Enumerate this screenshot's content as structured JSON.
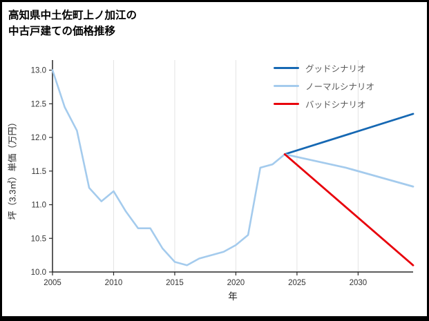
{
  "page": {
    "title_lines": [
      "高知県中土佐町上ノ加江の",
      "中古戸建ての価格推移"
    ]
  },
  "chart_data": {
    "type": "line",
    "title": "高知県中土佐町上ノ加江の中古戸建ての価格推移",
    "xlabel": "年",
    "ylabel": "坪（3.3㎡）単価（万円）",
    "xlim": [
      2005,
      2034.5
    ],
    "ylim": [
      10.0,
      13.15
    ],
    "xticks": [
      2005,
      2010,
      2015,
      2020,
      2025,
      2030
    ],
    "yticks": [
      10.0,
      10.5,
      11.0,
      11.5,
      12.0,
      12.5,
      13.0
    ],
    "grid": "vertical-only",
    "legend_position": "top-right",
    "colors": {
      "axis": "#262626",
      "grid": "#e3e3e3",
      "tick_text": "#333333",
      "legend_text": "#595959"
    },
    "history": {
      "key": "history",
      "color": "#a4cbed",
      "x": [
        2005,
        2006,
        2007,
        2008,
        2009,
        2010,
        2011,
        2012,
        2013,
        2014,
        2015,
        2016,
        2017,
        2018,
        2019,
        2020,
        2021,
        2022,
        2023,
        2024
      ],
      "y": [
        13.0,
        12.45,
        12.1,
        11.25,
        11.05,
        11.2,
        10.9,
        10.65,
        10.65,
        10.35,
        10.15,
        10.1,
        10.2,
        10.25,
        10.3,
        10.4,
        10.55,
        11.55,
        11.6,
        11.75
      ]
    },
    "series": [
      {
        "name": "グッドシナリオ",
        "key": "good",
        "color": "#1668b3",
        "x": [
          2024,
          2034.5
        ],
        "y": [
          11.75,
          12.35
        ]
      },
      {
        "name": "ノーマルシナリオ",
        "key": "normal",
        "color": "#a4cbed",
        "x": [
          2024,
          2029,
          2034.5
        ],
        "y": [
          11.75,
          11.55,
          11.27
        ]
      },
      {
        "name": "バッドシナリオ",
        "key": "bad",
        "color": "#e8000b",
        "x": [
          2024,
          2034.5
        ],
        "y": [
          11.75,
          10.1
        ]
      }
    ]
  }
}
